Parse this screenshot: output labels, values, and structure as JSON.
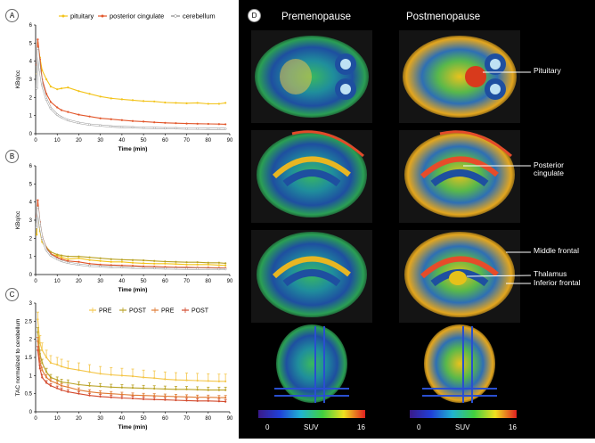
{
  "panels": {
    "A": "A",
    "B": "B",
    "C": "C",
    "D": "D"
  },
  "colors": {
    "pituitary": "#f3c319",
    "posterior_cingulate": "#e2562a",
    "cerebellum": "#ffffff",
    "pre_yellow": "#f4c64b",
    "post_yellow": "#b9a224",
    "pre_orange": "#e07a32",
    "post_orange": "#d34a2d"
  },
  "chart_data": [
    {
      "type": "line",
      "panel": "A",
      "ylabel": "KBq/cc",
      "xlabel": "Time (min)",
      "xlim": [
        0,
        90
      ],
      "ylim": [
        0,
        6
      ],
      "xticks": [
        0,
        10,
        20,
        30,
        40,
        50,
        60,
        70,
        80,
        90
      ],
      "yticks": [
        0,
        1,
        2,
        3,
        4,
        5,
        6
      ],
      "legend_position": "top",
      "series": [
        {
          "name": "pituitary",
          "color": "#f3c319",
          "x": [
            0.5,
            1,
            2,
            3,
            5,
            7,
            10,
            12,
            15,
            20,
            25,
            30,
            35,
            40,
            45,
            50,
            55,
            60,
            65,
            70,
            75,
            80,
            85,
            88
          ],
          "y": [
            3.3,
            5.0,
            4.2,
            3.5,
            3.0,
            2.6,
            2.45,
            2.5,
            2.55,
            2.35,
            2.2,
            2.05,
            1.95,
            1.9,
            1.85,
            1.8,
            1.78,
            1.72,
            1.7,
            1.68,
            1.7,
            1.65,
            1.65,
            1.7
          ]
        },
        {
          "name": "posterior cingulate",
          "color": "#e2562a",
          "x": [
            0.5,
            1,
            2,
            3,
            5,
            7,
            10,
            12,
            15,
            20,
            25,
            30,
            35,
            40,
            45,
            50,
            55,
            60,
            65,
            70,
            75,
            80,
            85,
            88
          ],
          "y": [
            3.8,
            5.2,
            4.1,
            3.0,
            2.2,
            1.75,
            1.45,
            1.3,
            1.2,
            1.05,
            0.95,
            0.85,
            0.8,
            0.75,
            0.7,
            0.67,
            0.63,
            0.6,
            0.58,
            0.56,
            0.55,
            0.54,
            0.53,
            0.52
          ]
        },
        {
          "name": "cerebellum",
          "color": "#ffffff",
          "x": [
            0.5,
            1,
            2,
            3,
            5,
            7,
            10,
            12,
            15,
            20,
            25,
            30,
            35,
            40,
            45,
            50,
            55,
            60,
            65,
            70,
            75,
            80,
            85,
            88
          ],
          "y": [
            2.5,
            4.7,
            3.5,
            2.7,
            1.9,
            1.4,
            1.05,
            0.9,
            0.75,
            0.6,
            0.5,
            0.45,
            0.4,
            0.37,
            0.35,
            0.33,
            0.32,
            0.3,
            0.3,
            0.28,
            0.28,
            0.27,
            0.27,
            0.27
          ]
        }
      ]
    },
    {
      "type": "line",
      "panel": "B",
      "ylabel": "KBq/cc",
      "xlabel": "Time (min)",
      "xlim": [
        0,
        90
      ],
      "ylim": [
        0,
        6
      ],
      "xticks": [
        0,
        10,
        20,
        30,
        40,
        50,
        60,
        70,
        80,
        90
      ],
      "yticks": [
        0,
        1,
        2,
        3,
        4,
        5,
        6
      ],
      "series": [
        {
          "color": "#f3c319",
          "x": [
            0.5,
            1,
            2,
            3,
            5,
            7,
            10,
            12,
            15,
            20,
            25,
            30,
            35,
            40,
            45,
            50,
            55,
            60,
            65,
            70,
            75,
            80,
            85,
            88
          ],
          "y": [
            2.2,
            3.5,
            2.4,
            1.8,
            1.4,
            1.1,
            1.05,
            0.95,
            0.85,
            0.9,
            0.8,
            0.75,
            0.7,
            0.7,
            0.65,
            0.62,
            0.6,
            0.6,
            0.58,
            0.55,
            0.55,
            0.55,
            0.52,
            0.5
          ]
        },
        {
          "color": "#b9a224",
          "x": [
            0.5,
            1,
            2,
            3,
            5,
            7,
            10,
            12,
            15,
            20,
            25,
            30,
            35,
            40,
            45,
            50,
            55,
            60,
            65,
            70,
            75,
            80,
            85,
            88
          ],
          "y": [
            2.8,
            3.8,
            2.6,
            2.0,
            1.5,
            1.25,
            1.1,
            1.05,
            1.0,
            1.0,
            0.95,
            0.9,
            0.85,
            0.82,
            0.8,
            0.78,
            0.75,
            0.72,
            0.7,
            0.68,
            0.68,
            0.65,
            0.65,
            0.62
          ]
        },
        {
          "color": "#e2562a",
          "x": [
            0.5,
            1,
            2,
            3,
            5,
            7,
            10,
            12,
            15,
            20,
            25,
            30,
            35,
            40,
            45,
            50,
            55,
            60,
            65,
            70,
            75,
            80,
            85,
            88
          ],
          "y": [
            3.2,
            4.1,
            2.9,
            2.1,
            1.45,
            1.15,
            0.95,
            0.85,
            0.75,
            0.7,
            0.6,
            0.55,
            0.52,
            0.5,
            0.48,
            0.45,
            0.44,
            0.42,
            0.4,
            0.4,
            0.38,
            0.38,
            0.37,
            0.36
          ]
        },
        {
          "color": "#ffffff",
          "x": [
            0.5,
            1,
            2,
            3,
            5,
            7,
            10,
            12,
            15,
            20,
            25,
            30,
            35,
            40,
            45,
            50,
            55,
            60,
            65,
            70,
            75,
            80,
            85,
            88
          ],
          "y": [
            2.6,
            3.7,
            2.7,
            2.0,
            1.35,
            1.05,
            0.85,
            0.75,
            0.65,
            0.55,
            0.48,
            0.45,
            0.42,
            0.4,
            0.38,
            0.36,
            0.35,
            0.34,
            0.33,
            0.32,
            0.32,
            0.31,
            0.3,
            0.3
          ]
        }
      ]
    },
    {
      "type": "line",
      "panel": "C",
      "ylabel": "TAC normalized to cerebellum",
      "xlabel": "Time (min)",
      "xlim": [
        0,
        90
      ],
      "ylim": [
        0,
        3
      ],
      "xticks": [
        0,
        10,
        20,
        30,
        40,
        50,
        60,
        70,
        80,
        90
      ],
      "yticks": [
        0,
        0.5,
        1,
        1.5,
        2,
        2.5,
        3
      ],
      "legend_position": "top-right",
      "series": [
        {
          "name": "PRE",
          "color": "#f4c64b",
          "x": [
            1,
            2,
            3,
            5,
            7,
            10,
            12,
            15,
            20,
            25,
            30,
            35,
            40,
            45,
            50,
            55,
            60,
            65,
            70,
            75,
            80,
            85,
            88
          ],
          "y": [
            2.55,
            1.9,
            1.7,
            1.5,
            1.35,
            1.3,
            1.25,
            1.2,
            1.15,
            1.1,
            1.05,
            1.02,
            1.0,
            0.98,
            0.95,
            0.93,
            0.9,
            0.88,
            0.87,
            0.86,
            0.85,
            0.84,
            0.84
          ],
          "err": [
            0.2,
            0.2,
            0.2,
            0.2,
            0.2,
            0.2,
            0.2,
            0.2,
            0.2,
            0.2,
            0.2,
            0.2,
            0.2,
            0.2,
            0.2,
            0.2,
            0.2,
            0.2,
            0.2,
            0.2,
            0.2,
            0.2,
            0.2
          ]
        },
        {
          "name": "POST",
          "color": "#b9a224",
          "x": [
            1,
            2,
            3,
            5,
            7,
            10,
            12,
            15,
            20,
            25,
            30,
            35,
            40,
            45,
            50,
            55,
            60,
            65,
            70,
            75,
            80,
            85,
            88
          ],
          "y": [
            2.2,
            1.6,
            1.35,
            1.1,
            0.95,
            0.88,
            0.82,
            0.8,
            0.75,
            0.72,
            0.7,
            0.68,
            0.67,
            0.66,
            0.65,
            0.64,
            0.63,
            0.62,
            0.62,
            0.61,
            0.6,
            0.6,
            0.6
          ],
          "err": [
            0.12,
            0.1,
            0.1,
            0.1,
            0.08,
            0.08,
            0.08,
            0.08,
            0.08,
            0.08,
            0.08,
            0.08,
            0.08,
            0.08,
            0.08,
            0.08,
            0.08,
            0.08,
            0.08,
            0.08,
            0.08,
            0.08,
            0.08
          ]
        },
        {
          "name": "PRE",
          "color": "#e07a32",
          "x": [
            1,
            2,
            3,
            5,
            7,
            10,
            12,
            15,
            20,
            25,
            30,
            35,
            40,
            45,
            50,
            55,
            60,
            65,
            70,
            75,
            80,
            85,
            88
          ],
          "y": [
            1.95,
            1.4,
            1.15,
            0.95,
            0.85,
            0.78,
            0.72,
            0.68,
            0.6,
            0.55,
            0.52,
            0.5,
            0.48,
            0.46,
            0.45,
            0.44,
            0.43,
            0.42,
            0.41,
            0.4,
            0.4,
            0.39,
            0.39
          ],
          "err": [
            0.1,
            0.08,
            0.08,
            0.08,
            0.06,
            0.06,
            0.06,
            0.06,
            0.06,
            0.06,
            0.06,
            0.06,
            0.06,
            0.06,
            0.06,
            0.06,
            0.06,
            0.06,
            0.06,
            0.06,
            0.06,
            0.06,
            0.06
          ]
        },
        {
          "name": "POST",
          "color": "#d34a2d",
          "x": [
            1,
            2,
            3,
            5,
            7,
            10,
            12,
            15,
            20,
            25,
            30,
            35,
            40,
            45,
            50,
            55,
            60,
            65,
            70,
            75,
            80,
            85,
            88
          ],
          "y": [
            1.7,
            1.2,
            0.95,
            0.8,
            0.72,
            0.65,
            0.6,
            0.55,
            0.5,
            0.45,
            0.42,
            0.4,
            0.38,
            0.37,
            0.35,
            0.34,
            0.33,
            0.32,
            0.31,
            0.3,
            0.3,
            0.29,
            0.28
          ],
          "err": [
            0.1,
            0.08,
            0.08,
            0.06,
            0.06,
            0.06,
            0.06,
            0.06,
            0.06,
            0.06,
            0.06,
            0.06,
            0.06,
            0.06,
            0.06,
            0.06,
            0.06,
            0.06,
            0.06,
            0.06,
            0.06,
            0.06,
            0.06
          ]
        }
      ]
    }
  ],
  "brain_panel": {
    "premenopause_title": "Premenopause",
    "postmenopause_title": "Postmenopause",
    "labels": {
      "pituitary": "Pituitary",
      "posterior_cingulate": "Posterior\ncingulate",
      "middle_frontal": "Middle frontal",
      "thalamus": "Thalamus",
      "inferior_frontal": "Inferior frontal"
    },
    "colorbar": {
      "min": "0",
      "label": "SUV",
      "max": "16"
    }
  }
}
